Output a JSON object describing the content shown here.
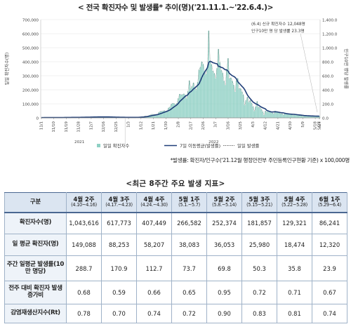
{
  "title_main": "< 전국 확진자수 및 발생률* 추이(명)('21.11.1.~'22.6.4.)>",
  "footnote": "*발생률: 확진자/인구수('21.12월 행정안전부 주민등록인구현황 기준) x 100,000명",
  "table_title": "<최근 8주간 주요 발생 지표>",
  "chart_data": {
    "type": "bar",
    "title": "",
    "ylabel": "일일 확진자수(명)",
    "ylabel_right": "인구10만 명당 발생률",
    "ylim": [
      0,
      700000
    ],
    "ylim_right": [
      0,
      1400
    ],
    "left_ticks": [
      "0",
      "100,000",
      "200,000",
      "300,000",
      "400,000",
      "500,000",
      "600,000",
      "700,000"
    ],
    "right_ticks": [
      "0.0",
      "200.0",
      "400.0",
      "600.0",
      "800.0",
      "1,000.0",
      "1,200.0",
      "1,400.0"
    ],
    "x_tick_labels": [
      "11/1",
      "11/10",
      "11/19",
      "11/28",
      "12/7",
      "12/16",
      "12/25",
      "1/3",
      "1/12",
      "1/21",
      "1/30",
      "2/8",
      "2/17",
      "2/26",
      "3/7",
      "3/16",
      "3/25",
      "4/3",
      "4/12",
      "4/21",
      "4/30",
      "5/9",
      "5/18",
      "5/27",
      "6/4"
    ],
    "year_labels": [
      "2021",
      "2022"
    ],
    "annotation_lines": [
      "(6.4) 신규 확진자수 12,048명",
      "인구10만 명 당 발생률 23.3명"
    ],
    "legend": {
      "bars": "일일 확진자수",
      "line": "7일 이동평균(발생률)",
      "dashed": "일일 발생률"
    },
    "legend_placement": "bottom",
    "colors": {
      "bars": "#8fd0c4",
      "line": "#1f3e78",
      "dashed": "#4a4a4a"
    },
    "daily": [
      2000,
      1700,
      2600,
      2600,
      2400,
      2200,
      2200,
      1800,
      2500,
      2400,
      2500,
      2400,
      2300,
      2400,
      2400,
      2400,
      3200,
      3300,
      3200,
      3200,
      3100,
      3000,
      4100,
      4000,
      3900,
      4000,
      3900,
      3300,
      3000,
      5100,
      5100,
      5300,
      5300,
      5100,
      4300,
      4300,
      7000,
      7000,
      7100,
      7400,
      6900,
      6100,
      5300,
      6700,
      7800,
      7300,
      7200,
      6600,
      5400,
      4300,
      5500,
      5200,
      5000,
      4900,
      4100,
      3800,
      3000,
      4400,
      4100,
      4000,
      3700,
      3400,
      3100,
      3000,
      3800,
      4400,
      4100,
      3500,
      3400,
      3600,
      3800,
      5700,
      7500,
      8600,
      9500,
      13000,
      11600,
      12900,
      19100,
      21100,
      25700,
      23100,
      24900,
      24300,
      25300,
      40000,
      45900,
      47100,
      49400,
      51900,
      46900,
      52200,
      71600,
      76600,
      98100,
      104300,
      102000,
      94200,
      104900,
      139400,
      170000,
      164400,
      165800,
      171400,
      163500,
      138000,
      190800,
      265900,
      210700,
      226100,
      250400,
      218400,
      198600,
      254300,
      342400,
      362300,
      400700,
      382200,
      334700,
      310000,
      362300,
      621100,
      407000,
      381500,
      335600,
      318100,
      282900,
      353900,
      490800,
      395600,
      339500,
      321300,
      264000,
      234300,
      347500,
      424600,
      280200,
      286200,
      264000,
      234900,
      185500,
      266000,
      282000,
      208600,
      209100,
      187200,
      164400,
      90900,
      125800,
      148400,
      111300,
      125800,
      106200,
      81000,
      47700,
      80000,
      117900,
      75800,
      74000,
      62000,
      45800,
      20000,
      49700,
      42300,
      51000,
      47700,
      43900,
      35400,
      29100,
      49900,
      43100,
      39500,
      35000,
      30000,
      29800,
      21800,
      29800,
      29500,
      27000,
      26000,
      24000,
      25000,
      18000,
      25000,
      21000,
      19000,
      17000,
      16000,
      17000,
      11500,
      15700,
      15000,
      14000,
      13500,
      13000,
      12500,
      9000,
      13000,
      12500,
      12000,
      12000,
      12048
    ]
  },
  "table": {
    "corner": "구분",
    "columns": [
      {
        "week": "4월 2주",
        "range": "(4.10~4.16)"
      },
      {
        "week": "4월 3주",
        "range": "(4.17.~4.23)"
      },
      {
        "week": "4월 4주",
        "range": "(4.24.~4.30)"
      },
      {
        "week": "5월 1주",
        "range": "(5.1.~5.7)"
      },
      {
        "week": "5월 2주",
        "range": "(5.8.~5.14)"
      },
      {
        "week": "5월 3주",
        "range": "(5.15~5.21)"
      },
      {
        "week": "5월 4주",
        "range": "(5.22~5.28)"
      },
      {
        "week": "6월 1주",
        "range": "(5.29~6.4)"
      }
    ],
    "rows": [
      {
        "label": "확진자수(명)",
        "values": [
          "1,043,616",
          "617,773",
          "407,449",
          "266,582",
          "252,374",
          "181,857",
          "129,321",
          "86,241"
        ]
      },
      {
        "label": "일 평균 확진자(명)",
        "values": [
          "149,088",
          "88,253",
          "58,207",
          "38,083",
          "36,053",
          "25,980",
          "18,474",
          "12,320"
        ]
      },
      {
        "label": "주간 일평균 발생률(10만 명당)",
        "values": [
          "288.7",
          "170.9",
          "112.7",
          "73.7",
          "69.8",
          "50.3",
          "35.8",
          "23.9"
        ]
      },
      {
        "label": "전주 대비 확진자 발생 증가비",
        "values": [
          "0.68",
          "0.59",
          "0.66",
          "0.65",
          "0.95",
          "0.72",
          "0.71",
          "0.67"
        ]
      },
      {
        "label": "감염재생산지수(Rt)",
        "values": [
          "0.78",
          "0.70",
          "0.74",
          "0.72",
          "0.90",
          "0.83",
          "0.81",
          "0.74"
        ]
      }
    ]
  }
}
